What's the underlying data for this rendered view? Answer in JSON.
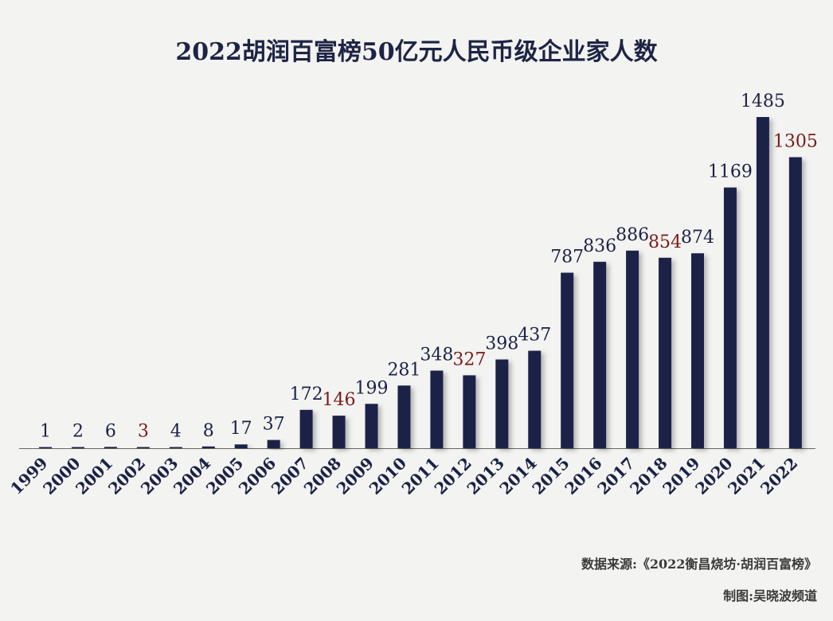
{
  "chart_data": {
    "type": "bar",
    "title": "2022胡润百富榜50亿元人民币级企业家人数",
    "categories": [
      "1999",
      "2000",
      "2001",
      "2002",
      "2003",
      "2004",
      "2005",
      "2006",
      "2007",
      "2008",
      "2009",
      "2010",
      "2011",
      "2012",
      "2013",
      "2014",
      "2015",
      "2016",
      "2017",
      "2018",
      "2019",
      "2020",
      "2021",
      "2022"
    ],
    "values": [
      1,
      2,
      6,
      3,
      4,
      8,
      17,
      37,
      172,
      146,
      199,
      281,
      348,
      327,
      398,
      437,
      787,
      836,
      886,
      854,
      874,
      1169,
      1485,
      1305
    ],
    "highlighted_years": [
      "2002",
      "2008",
      "2012",
      "2018",
      "2022"
    ],
    "ylim": [
      0,
      1500
    ],
    "xlabel": "",
    "ylabel": "",
    "grid": false,
    "colors": {
      "bar": "#1c2147",
      "label": "#1c2147",
      "highlight_label": "#7a1a1a",
      "axis": "#666666"
    }
  },
  "footer": {
    "source": "数据来源:《2022衡昌烧坊·胡润百富榜》",
    "credit": "制图:吴晓波频道"
  }
}
